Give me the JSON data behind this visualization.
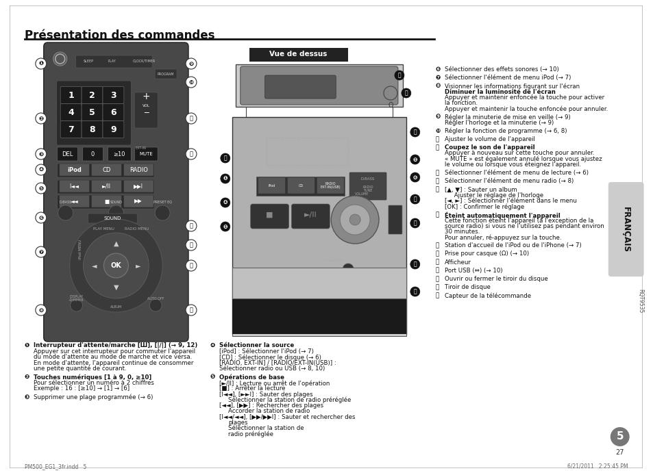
{
  "title": "Présentation des commandes",
  "page_bg": "#ffffff",
  "title_color": "#1a1a1a",
  "sidebar_text": "FRANÇAIS",
  "sidebar_bg": "#cccccc",
  "vue_dessus_label": "Vue de dessus",
  "vue_dessus_bg": "#222222",
  "vue_dessus_text_color": "#ffffff",
  "footer_left": "PM500_EG1_3fr.indd   5",
  "footer_right": "6/21/2011   2:25:45 PM",
  "footer_page": "27",
  "footer_num": "5",
  "rqt_code": "RQT9535",
  "remote_bg": "#555555",
  "remote_body_bg": "#444444",
  "btn_bg": "#333333",
  "btn_text": "#ffffff",
  "num_btn_bg": "#222222",
  "left_items": [
    {
      "num": "❶",
      "bold": "Interrupteur d'attente/marche [Ш], [|∕|] (→ 9, 12)",
      "normal": "Appuyer sur cet interrupteur pour commuter l'appareil\ndu mode d'attente au mode de marche et vice versa.\nEn mode d'attente, l'appareil continue de consommer\nune petite quantité de courant."
    },
    {
      "num": "❷",
      "bold": "Touches numériques [1 à 9, 0, ≥10]",
      "normal": "Pour sélectionner un numéro à 2 chiffres\nExemple : 16 : [≥10] → [1] → [6]"
    },
    {
      "num": "❸",
      "bold": "",
      "normal": "Supprimer une plage programmée (→ 6)"
    }
  ],
  "mid_items": [
    {
      "num": "❹",
      "bold": "Sélectionner la source",
      "normal": "[iPod] : Sélectionner l'iPod (→ 7)\n[CD] : Sélectionner le disque (→ 6)\n[RADIO, EXT-IN] / [RADIO/EXT-IN(USB)] :\nSélectionner radio ou USB (→ 8, 10)"
    },
    {
      "num": "❺",
      "bold": "Opérations de base",
      "lines": [
        {
          "t": "[►/II] : Lecture ou arrêt de l'opération",
          "indent": false
        },
        {
          "t": "[■] : Arrêter la lecture",
          "indent": false
        },
        {
          "t": "[I◄◄], [►►I] : Sauter des plages",
          "indent": false
        },
        {
          "t": "Sélectionner la station de radio préréglée",
          "indent": true
        },
        {
          "t": "[◄◄], [▶▶] : Rechercher des plages",
          "indent": false
        },
        {
          "t": "Accorder la station de radio",
          "indent": true
        },
        {
          "t": "[I◄◄/◄◄], [▶▶/▶▶I] : Sauter et rechercher des",
          "indent": false
        },
        {
          "t": "plages",
          "indent": true
        },
        {
          "t": "Sélectionner la station de",
          "indent": true
        },
        {
          "t": "radio préréglée",
          "indent": true
        }
      ]
    }
  ],
  "right_items": [
    {
      "num": "❻",
      "bold": false,
      "text": "Sélectionner des effets sonores (→ 10)"
    },
    {
      "num": "❼",
      "bold": false,
      "text": "Sélectionner l'élément de menu iPod (→ 7)"
    },
    {
      "num": "❽",
      "bold": false,
      "first_bold": false,
      "lines": [
        {
          "t": "Visionner les informations figurant sur l'écran",
          "b": false
        },
        {
          "t": "Diminuer la luminosité de l'écran",
          "b": true
        },
        {
          "t": "Appuyer et maintenir enfoncée la touche pour activer",
          "b": false
        },
        {
          "t": "la fonction.",
          "b": false
        },
        {
          "t": "Appuyer et maintenir la touche enfoncée pour annuler.",
          "b": false
        }
      ]
    },
    {
      "num": "❾",
      "bold": false,
      "text": "Régler la minuterie de mise en veille (→ 9)\nRégler l'horloge et la minuterie (→ 9)"
    },
    {
      "num": "❿",
      "bold": false,
      "text": "Régler la fonction de programme (→ 6, 8)"
    },
    {
      "num": "⓫",
      "bold": false,
      "text": "Ajuster le volume de l'appareil"
    },
    {
      "num": "⓬",
      "bold": true,
      "lines": [
        {
          "t": "Coupez le son de l'appareil",
          "b": true
        },
        {
          "t": "Appuyer à nouveau sur cette touche pour annuler.",
          "b": false
        },
        {
          "t": "« MUTE » est également annulé lorsque vous ajustez",
          "b": false
        },
        {
          "t": "le volume ou lorsque vous éteignez l'appareil.",
          "b": false
        }
      ]
    },
    {
      "num": "⓭",
      "bold": false,
      "text": "Sélectionner l'élément de menu de lecture (→ 6)"
    },
    {
      "num": "⓮",
      "bold": false,
      "text": "Sélectionner l'élément de menu radio (→ 8)"
    },
    {
      "num": "⓯",
      "bold": false,
      "lines": [
        {
          "t": "[▲, ▼] : Sauter un album",
          "b": false
        },
        {
          "t": "     Ajuster le réglage de l'horloge",
          "b": false
        },
        {
          "t": "[◄, ►] : Sélectionner l'élément dans le menu",
          "b": false
        },
        {
          "t": "[OK] : Confirmer le réglage",
          "b": false
        }
      ]
    },
    {
      "num": "⓰",
      "bold": true,
      "lines": [
        {
          "t": "Éteint automatiquement l'appareil",
          "b": true
        },
        {
          "t": "Cette fonction éteint l'appareil (à l'exception de la",
          "b": false
        },
        {
          "t": "source radio) si vous ne l'utilisez pas pendant environ",
          "b": false
        },
        {
          "t": "30 minutes.",
          "b": false
        },
        {
          "t": "Pour annuler, ré-appuyez sur la touche.",
          "b": false
        }
      ]
    },
    {
      "num": "⓱",
      "bold": false,
      "text": "Station d'accueil de l'iPod ou de l'iPhone (→ 7)"
    },
    {
      "num": "⓲",
      "bold": false,
      "text": "Prise pour casque (Ω) (→ 10)"
    },
    {
      "num": "⓳",
      "bold": false,
      "text": "Afficheur"
    },
    {
      "num": "⓴",
      "bold": false,
      "text": "Port USB (⇔) (→ 10)"
    },
    {
      "num": "㉑",
      "bold": false,
      "text": "Ouvrir ou fermer le tiroir du disque"
    },
    {
      "num": "㉒",
      "bold": false,
      "text": "Tiroir de disque"
    },
    {
      "num": "㉓",
      "bold": false,
      "text": "Capteur de la télécommande"
    }
  ]
}
